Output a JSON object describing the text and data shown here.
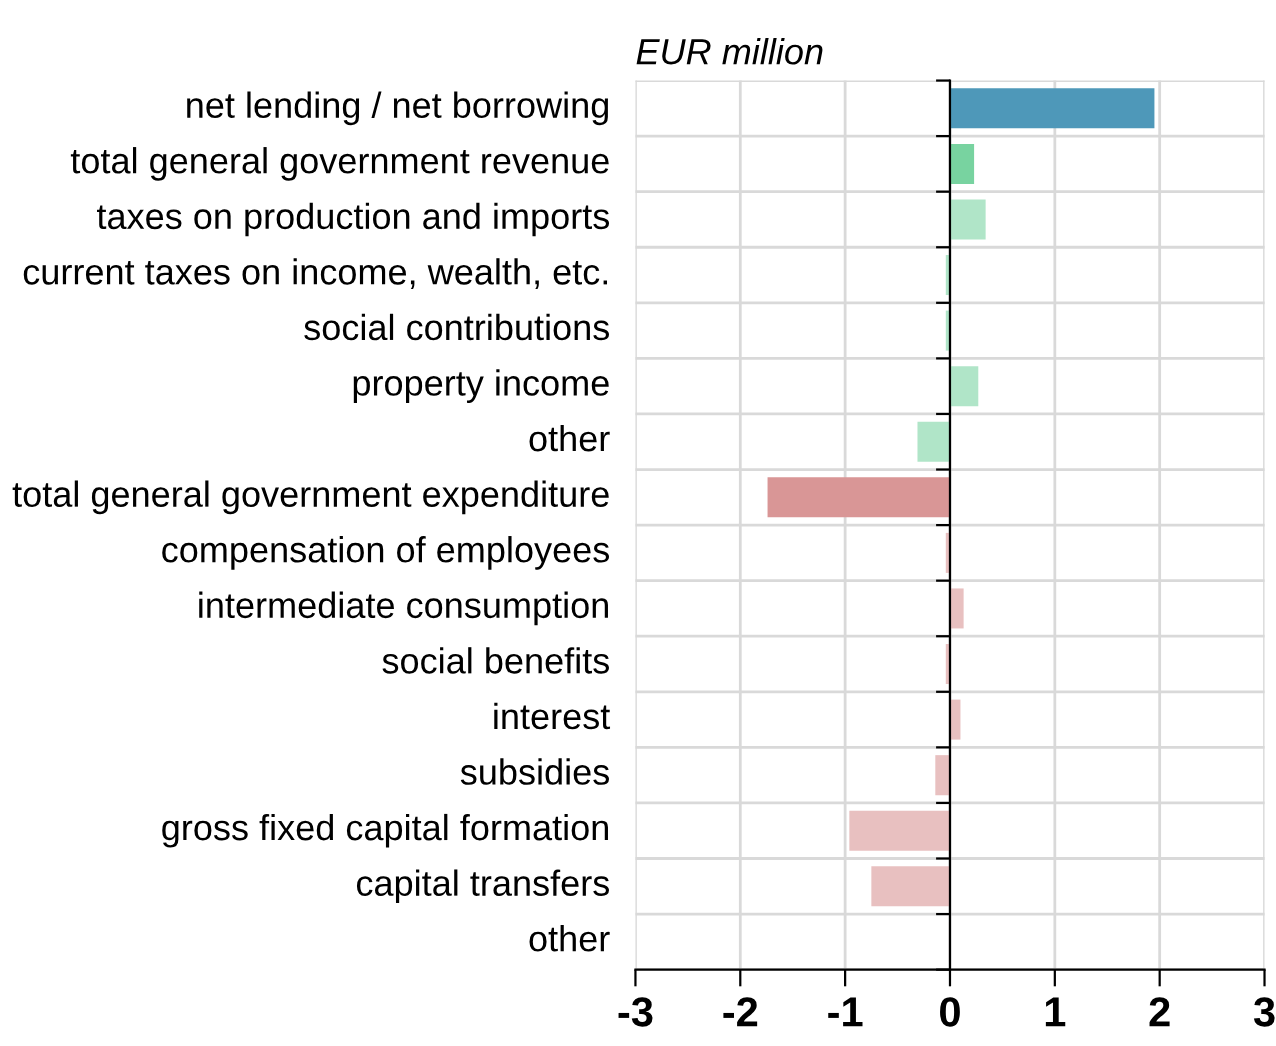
{
  "chart_data": {
    "type": "bar",
    "orientation": "horizontal",
    "title": "EUR million",
    "categories": [
      "net lending / net borrowing",
      "total general government revenue",
      "taxes on production and imports",
      "current taxes on income, wealth, etc.",
      "social contributions",
      "property income",
      "other",
      "total general government expenditure",
      "compensation of employees",
      "intermediate consumption",
      "social benefits",
      "interest",
      "subsidies",
      "gross fixed capital formation",
      "capital transfers",
      "other"
    ],
    "values": [
      1.95,
      0.23,
      0.34,
      -0.04,
      -0.04,
      0.27,
      -0.31,
      -1.74,
      -0.04,
      0.13,
      -0.04,
      0.1,
      -0.14,
      -0.96,
      -0.75,
      -0.01
    ],
    "colors": [
      "#4e98b9",
      "#78d3a0",
      "#b0e5c8",
      "#b0e5c8",
      "#b0e5c8",
      "#b0e5c8",
      "#b0e5c8",
      "#d99696",
      "#e8c0c0",
      "#e8c0c0",
      "#e8c0c0",
      "#e8c0c0",
      "#e8c0c0",
      "#e8c0c0",
      "#e8c0c0",
      "#e8c0c0"
    ],
    "xlim": [
      -3,
      3
    ],
    "xticks": [
      -3,
      -2,
      -1,
      0,
      1,
      2,
      3
    ],
    "grid": true
  }
}
